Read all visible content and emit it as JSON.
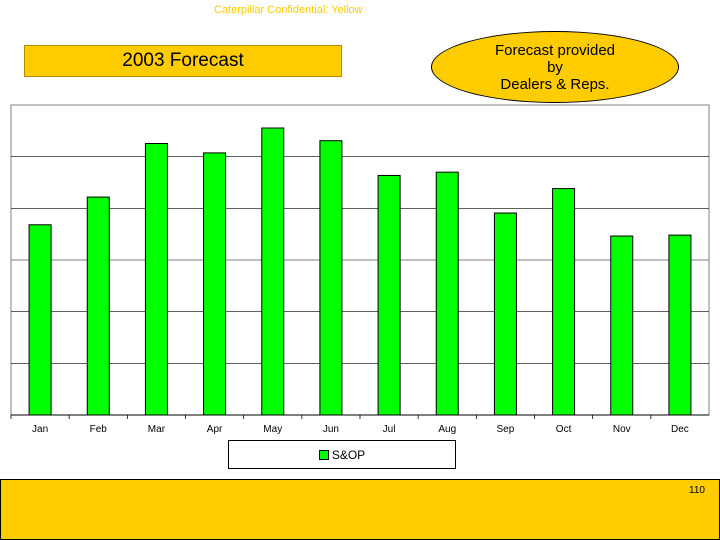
{
  "header": {
    "confidential": "Caterpillar Confidential: Yellow",
    "title": "2003 Forecast",
    "callout_lines": [
      "Forecast provided",
      "by",
      "Dealers & Reps."
    ]
  },
  "colors": {
    "accent": "#ffcc00",
    "bar": "#00ff00",
    "plot_bg": "#ffffff",
    "gridline": "#000000"
  },
  "chart_data": {
    "type": "bar",
    "categories": [
      "Jan",
      "Feb",
      "Mar",
      "Apr",
      "May",
      "Jun",
      "Jul",
      "Aug",
      "Sep",
      "Oct",
      "Nov",
      "Dec"
    ],
    "series": [
      {
        "name": "S&OP",
        "values": [
          40.5,
          46.4,
          57.8,
          55.8,
          61.1,
          58.4,
          51.0,
          51.7,
          43.0,
          48.2,
          38.1,
          38.3
        ]
      }
    ],
    "ylim": [
      0,
      66
    ],
    "grid": true,
    "legend_position": "bottom"
  },
  "footer": {
    "page_number": "110"
  }
}
